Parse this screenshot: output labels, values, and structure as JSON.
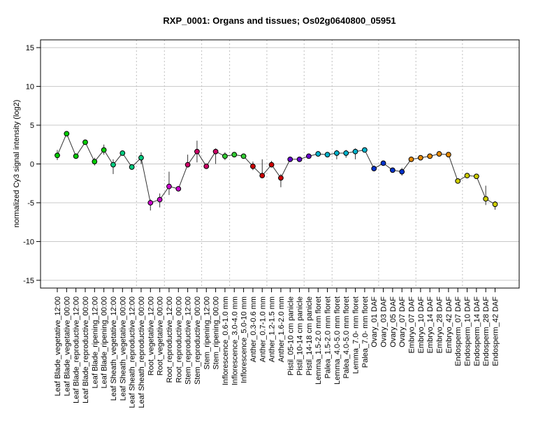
{
  "chart_data": {
    "type": "line",
    "title": "RXP_0001: Organs and tissues; Os02g0640800_05951",
    "xlabel": "",
    "ylabel": "normalized Cy3 signal intensity (log2)",
    "ylim": [
      -16,
      16
    ],
    "yticks": [
      -15,
      -10,
      -5,
      0,
      5,
      10,
      15
    ],
    "grid": true,
    "legend": "none",
    "group_ends": [
      8,
      11,
      15,
      18,
      22,
      26,
      29,
      34,
      38,
      43
    ],
    "categories": [
      "Leaf Blade_vegetative_12:00",
      "Leaf Blade_vegetative_00:00",
      "Leaf Blade_reproductive_12:00",
      "Leaf Blade_reproductive_00:00",
      "Leaf Blade_ripening_12:00",
      "Leaf Blade_ripening_00:00",
      "Leaf Sheath_vegetative_12:00",
      "Leaf Sheath_vegetative_00:00",
      "Leaf Sheath_reproductive_12:00",
      "Leaf Sheath_reproductive_00:00",
      "Root_vegetative_12:00",
      "Root_vegetative_00:00",
      "Root_reproductive_12:00",
      "Root_reproductive_00:00",
      "Stem_reproductive_12:00",
      "Stem_reproductive_00:00",
      "Stem_ripening_12:00",
      "Stem_ripening_00:00",
      "Inflorescence_0.6-1.0 mm",
      "Inflorescence_3.0-4.0 mm",
      "Inflorescence_5.0-10 mm",
      "Anther_0.3-0.6 mm",
      "Anther_0.7-1.0 mm",
      "Anther_1.2-1.5 mm",
      "Anther_1.6-2.0 mm",
      "Pistil_05-10 cm panicle",
      "Pistil_10-14 cm panicle",
      "Pistil_14-18 cm panicle",
      "Lemma_1.5-2.0 mm floret",
      "Palea_1.5-2.0 mm floret",
      "Lemma_4.0-5.0 mm floret",
      "Palea_4.0-5.0 mm floret",
      "Lemma_7.0- mm floret",
      "Palea_7.0- mm floret",
      "Ovary_01 DAF",
      "Ovary_03 DAF",
      "Ovary_05 DAF",
      "Ovary_07 DAF",
      "Embryo_07 DAF",
      "Embryo_10 DAF",
      "Embryo_14 DAF",
      "Embryo_28 DAF",
      "Embryo_42 DAF",
      "Endosperm_07 DAF",
      "Endosperm_10 DAF",
      "Endosperm_14 DAF",
      "Endosperm_28 DAF",
      "Endosperm_42 DAF"
    ],
    "values": [
      1.1,
      3.9,
      1.0,
      2.8,
      0.3,
      1.8,
      -0.1,
      1.4,
      -0.4,
      0.8,
      -5.0,
      -4.6,
      -2.9,
      -3.2,
      -0.1,
      1.6,
      -0.3,
      1.6,
      1.0,
      1.2,
      1.0,
      -0.3,
      -1.5,
      -0.1,
      -1.8,
      0.6,
      0.6,
      1.0,
      1.3,
      1.2,
      1.4,
      1.4,
      1.6,
      1.8,
      -0.6,
      0.1,
      -0.8,
      -1.0,
      0.6,
      0.8,
      1.0,
      1.3,
      1.2,
      -2.2,
      -1.5,
      -1.6,
      -4.5,
      -5.2
    ],
    "err_low": [
      0.5,
      3.7,
      0.8,
      2.6,
      -0.2,
      1.2,
      -1.3,
      1.2,
      -0.5,
      0.0,
      -6.0,
      -5.6,
      -4.0,
      -3.3,
      -0.3,
      0.2,
      -0.5,
      0.0,
      0.5,
      1.0,
      0.8,
      -0.8,
      -1.7,
      -0.4,
      -3.0,
      0.4,
      0.4,
      0.8,
      1.1,
      1.0,
      0.6,
      0.8,
      0.6,
      1.6,
      -0.9,
      -0.1,
      -1.0,
      -1.5,
      0.4,
      0.7,
      0.9,
      1.1,
      1.0,
      -2.4,
      -1.6,
      -1.7,
      -5.3,
      -5.9
    ],
    "err_high": [
      1.8,
      4.1,
      1.2,
      3.0,
      0.8,
      2.5,
      0.6,
      1.6,
      -0.3,
      1.5,
      -4.6,
      -3.8,
      -1.0,
      -3.0,
      1.2,
      3.0,
      -0.1,
      2.0,
      1.5,
      1.4,
      1.2,
      0.3,
      0.6,
      0.4,
      -1.3,
      0.8,
      0.8,
      1.2,
      1.5,
      1.4,
      1.8,
      1.8,
      2.0,
      2.0,
      -0.2,
      0.3,
      -0.6,
      -0.5,
      0.8,
      1.0,
      1.2,
      1.5,
      1.5,
      -2.0,
      -1.4,
      -1.4,
      -2.8,
      -4.8
    ],
    "colors": [
      "#00cc00",
      "#00cc00",
      "#00cc00",
      "#00cc00",
      "#00cc00",
      "#00cc00",
      "#00cc80",
      "#00cc80",
      "#00cc80",
      "#00cc80",
      "#cc00cc",
      "#cc00cc",
      "#cc00cc",
      "#cc00cc",
      "#cc0066",
      "#cc0066",
      "#cc0066",
      "#cc0066",
      "#33cc33",
      "#33cc33",
      "#33cc33",
      "#cc0000",
      "#cc0000",
      "#cc0000",
      "#cc0000",
      "#6600cc",
      "#6600cc",
      "#6600cc",
      "#00b3cc",
      "#00b3cc",
      "#00b3cc",
      "#00b3cc",
      "#00b3cc",
      "#00b3cc",
      "#0033cc",
      "#0033cc",
      "#0033cc",
      "#0033cc",
      "#e68a00",
      "#e68a00",
      "#e68a00",
      "#e68a00",
      "#e68a00",
      "#cccc00",
      "#cccc00",
      "#cccc00",
      "#cccc00",
      "#cccc00"
    ]
  }
}
